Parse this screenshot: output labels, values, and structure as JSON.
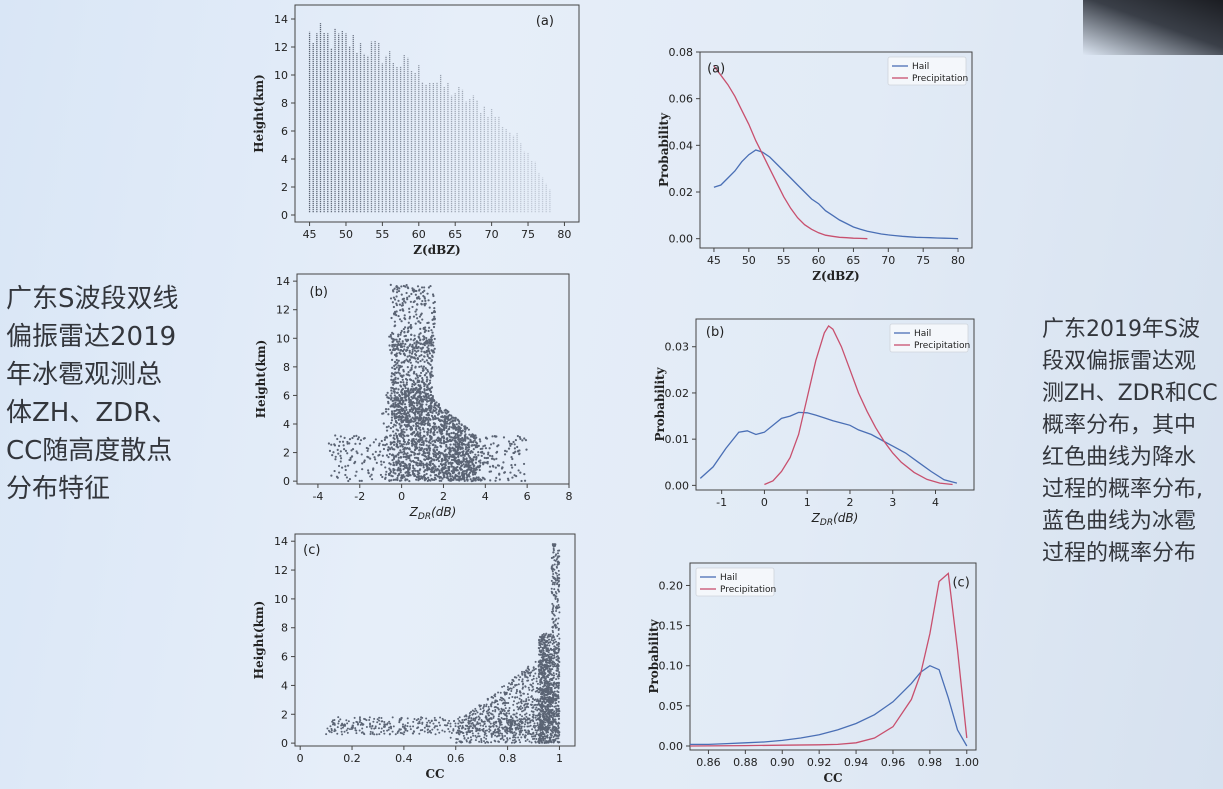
{
  "slide": {
    "left_caption": "广东S波段双线\n偏振雷达2019\n年冰雹观测总\n体ZH、ZDR、\nCC随高度散点\n分布特征",
    "right_caption": "广东2019年S波\n段双偏振雷达观\n测ZH、ZDR和CC\n概率分布，其中\n红色曲线为降水\n过程的概率分布,\n蓝色曲线为冰雹\n过程的概率分布"
  },
  "colors": {
    "hail": "#4a6fb5",
    "precipitation": "#c8506e",
    "scatter": "#5b6474",
    "frame": "#444444"
  },
  "chart_data": [
    {
      "id": "scatter-a",
      "type": "scatter",
      "panel_label": "(a)",
      "xlabel": "Z(dBZ)",
      "ylabel": "Height(km)",
      "xlim": [
        43,
        82
      ],
      "ylim": [
        -0.5,
        15
      ],
      "xticks": [
        45,
        50,
        55,
        60,
        65,
        70,
        75,
        80
      ],
      "yticks": [
        0,
        2,
        4,
        6,
        8,
        10,
        12,
        14
      ],
      "density": {
        "x_range": [
          45,
          78
        ],
        "height_max_at_x": [
          [
            45,
            13.8
          ],
          [
            50,
            13.5
          ],
          [
            55,
            12.5
          ],
          [
            60,
            11
          ],
          [
            65,
            9.5
          ],
          [
            70,
            8
          ],
          [
            75,
            5
          ],
          [
            78,
            2
          ]
        ]
      }
    },
    {
      "id": "scatter-b",
      "type": "scatter",
      "panel_label": "(b)",
      "xlabel": "Z_DR(dB)",
      "ylabel": "Height(km)",
      "xlim": [
        -5,
        8
      ],
      "ylim": [
        -0.2,
        14.5
      ],
      "xticks": [
        -4,
        -2,
        0,
        2,
        4,
        6,
        8
      ],
      "yticks": [
        0,
        2,
        4,
        6,
        8,
        10,
        12,
        14
      ],
      "density": {
        "core_x": [
          -0.5,
          3.5
        ],
        "core_height": [
          0,
          7
        ],
        "max_height": 13.8
      }
    },
    {
      "id": "scatter-c",
      "type": "scatter",
      "panel_label": "(c)",
      "xlabel": "CC",
      "ylabel": "Height(km)",
      "xlim": [
        -0.02,
        1.06
      ],
      "ylim": [
        -0.2,
        14.5
      ],
      "xticks": [
        0.0,
        0.2,
        0.4,
        0.6,
        0.8,
        1.0
      ],
      "yticks": [
        0,
        2,
        4,
        6,
        8,
        10,
        12,
        14
      ],
      "density": {
        "core_x": [
          0.9,
          1.0
        ],
        "max_height": 13.8
      }
    },
    {
      "id": "line-a",
      "type": "line",
      "panel_label": "(a)",
      "xlabel": "Z(dBZ)",
      "ylabel": "Probability",
      "xlim": [
        43,
        82
      ],
      "ylim": [
        -0.004,
        0.08
      ],
      "xticks": [
        45,
        50,
        55,
        60,
        65,
        70,
        75,
        80
      ],
      "yticks": [
        0.0,
        0.02,
        0.04,
        0.06,
        0.08
      ],
      "ytick_labels": [
        "0.00",
        "0.02",
        "0.04",
        "0.06",
        "0.08"
      ],
      "legend_position": "top-right",
      "series": [
        {
          "name": "Hail",
          "color_key": "hail",
          "x": [
            45,
            46,
            47,
            48,
            49,
            50,
            51,
            52,
            53,
            54,
            55,
            56,
            57,
            58,
            59,
            60,
            61,
            62,
            63,
            64,
            65,
            66,
            67,
            68,
            69,
            70,
            71,
            72,
            73,
            74,
            75,
            76,
            77,
            78,
            79,
            80
          ],
          "y": [
            0.022,
            0.023,
            0.026,
            0.029,
            0.033,
            0.036,
            0.038,
            0.037,
            0.035,
            0.032,
            0.029,
            0.026,
            0.023,
            0.02,
            0.017,
            0.015,
            0.012,
            0.01,
            0.008,
            0.0065,
            0.005,
            0.004,
            0.0032,
            0.0026,
            0.002,
            0.0016,
            0.0013,
            0.001,
            0.0008,
            0.0006,
            0.0005,
            0.0004,
            0.0003,
            0.0002,
            0.0001,
            0.0
          ]
        },
        {
          "name": "Precipitation",
          "color_key": "precipitation",
          "x": [
            45,
            46,
            47,
            48,
            49,
            50,
            51,
            52,
            53,
            54,
            55,
            56,
            57,
            58,
            59,
            60,
            61,
            62,
            63,
            64,
            65,
            66,
            67
          ],
          "y": [
            0.074,
            0.07,
            0.066,
            0.061,
            0.055,
            0.049,
            0.042,
            0.036,
            0.03,
            0.024,
            0.018,
            0.013,
            0.009,
            0.006,
            0.004,
            0.0025,
            0.0015,
            0.001,
            0.0006,
            0.0004,
            0.0002,
            0.0001,
            0.0
          ]
        }
      ]
    },
    {
      "id": "line-b",
      "type": "line",
      "panel_label": "(b)",
      "xlabel": "Z_DR(dB)",
      "ylabel": "Probability",
      "xlim": [
        -1.6,
        4.9
      ],
      "ylim": [
        -0.001,
        0.036
      ],
      "xticks": [
        -1,
        0,
        1,
        2,
        3,
        4
      ],
      "yticks": [
        0.0,
        0.01,
        0.02,
        0.03
      ],
      "ytick_labels": [
        "0.00",
        "0.01",
        "0.02",
        "0.03"
      ],
      "legend_position": "top-right",
      "series": [
        {
          "name": "Hail",
          "color_key": "hail",
          "x": [
            -1.5,
            -1.2,
            -0.9,
            -0.6,
            -0.4,
            -0.2,
            0.0,
            0.2,
            0.4,
            0.6,
            0.8,
            1.0,
            1.2,
            1.4,
            1.6,
            1.8,
            2.0,
            2.2,
            2.5,
            2.8,
            3.0,
            3.3,
            3.6,
            3.9,
            4.2,
            4.5
          ],
          "y": [
            0.0015,
            0.004,
            0.008,
            0.0115,
            0.0118,
            0.011,
            0.0115,
            0.013,
            0.0145,
            0.015,
            0.0158,
            0.0157,
            0.0152,
            0.0146,
            0.014,
            0.0135,
            0.013,
            0.012,
            0.011,
            0.0095,
            0.0085,
            0.007,
            0.005,
            0.003,
            0.0012,
            0.0005
          ]
        },
        {
          "name": "Precipitation",
          "color_key": "precipitation",
          "x": [
            0.0,
            0.2,
            0.4,
            0.6,
            0.8,
            1.0,
            1.2,
            1.4,
            1.5,
            1.6,
            1.8,
            2.0,
            2.2,
            2.4,
            2.6,
            2.8,
            3.0,
            3.2,
            3.5,
            3.8,
            4.1,
            4.4
          ],
          "y": [
            0.0002,
            0.001,
            0.003,
            0.006,
            0.011,
            0.019,
            0.027,
            0.033,
            0.0345,
            0.0338,
            0.03,
            0.025,
            0.02,
            0.016,
            0.0125,
            0.0095,
            0.007,
            0.005,
            0.0028,
            0.0013,
            0.0005,
            0.0002
          ]
        }
      ]
    },
    {
      "id": "line-c",
      "type": "line",
      "panel_label": "(c)",
      "xlabel": "CC",
      "ylabel": "Probability",
      "xlim": [
        0.85,
        1.005
      ],
      "ylim": [
        -0.005,
        0.228
      ],
      "xticks": [
        0.86,
        0.88,
        0.9,
        0.92,
        0.94,
        0.96,
        0.98,
        1.0
      ],
      "xtick_labels": [
        "0.86",
        "0.88",
        "0.90",
        "0.92",
        "0.94",
        "0.96",
        "0.98",
        "1.00"
      ],
      "yticks": [
        0.0,
        0.05,
        0.1,
        0.15,
        0.2
      ],
      "ytick_labels": [
        "0.00",
        "0.05",
        "0.10",
        "0.15",
        "0.20"
      ],
      "legend_position": "top-left",
      "series": [
        {
          "name": "Hail",
          "color_key": "hail",
          "x": [
            0.85,
            0.86,
            0.87,
            0.88,
            0.89,
            0.9,
            0.91,
            0.92,
            0.93,
            0.94,
            0.95,
            0.96,
            0.97,
            0.975,
            0.98,
            0.985,
            0.99,
            0.995,
            1.0
          ],
          "y": [
            0.002,
            0.002,
            0.003,
            0.004,
            0.005,
            0.007,
            0.01,
            0.014,
            0.02,
            0.028,
            0.039,
            0.055,
            0.078,
            0.092,
            0.1,
            0.095,
            0.06,
            0.02,
            0.0
          ]
        },
        {
          "name": "Precipitation",
          "color_key": "precipitation",
          "x": [
            0.85,
            0.88,
            0.9,
            0.92,
            0.93,
            0.94,
            0.95,
            0.96,
            0.97,
            0.975,
            0.98,
            0.985,
            0.99,
            0.995,
            1.0
          ],
          "y": [
            0.0,
            0.0005,
            0.001,
            0.0015,
            0.002,
            0.004,
            0.01,
            0.024,
            0.058,
            0.09,
            0.14,
            0.205,
            0.215,
            0.12,
            0.01
          ]
        }
      ]
    }
  ]
}
